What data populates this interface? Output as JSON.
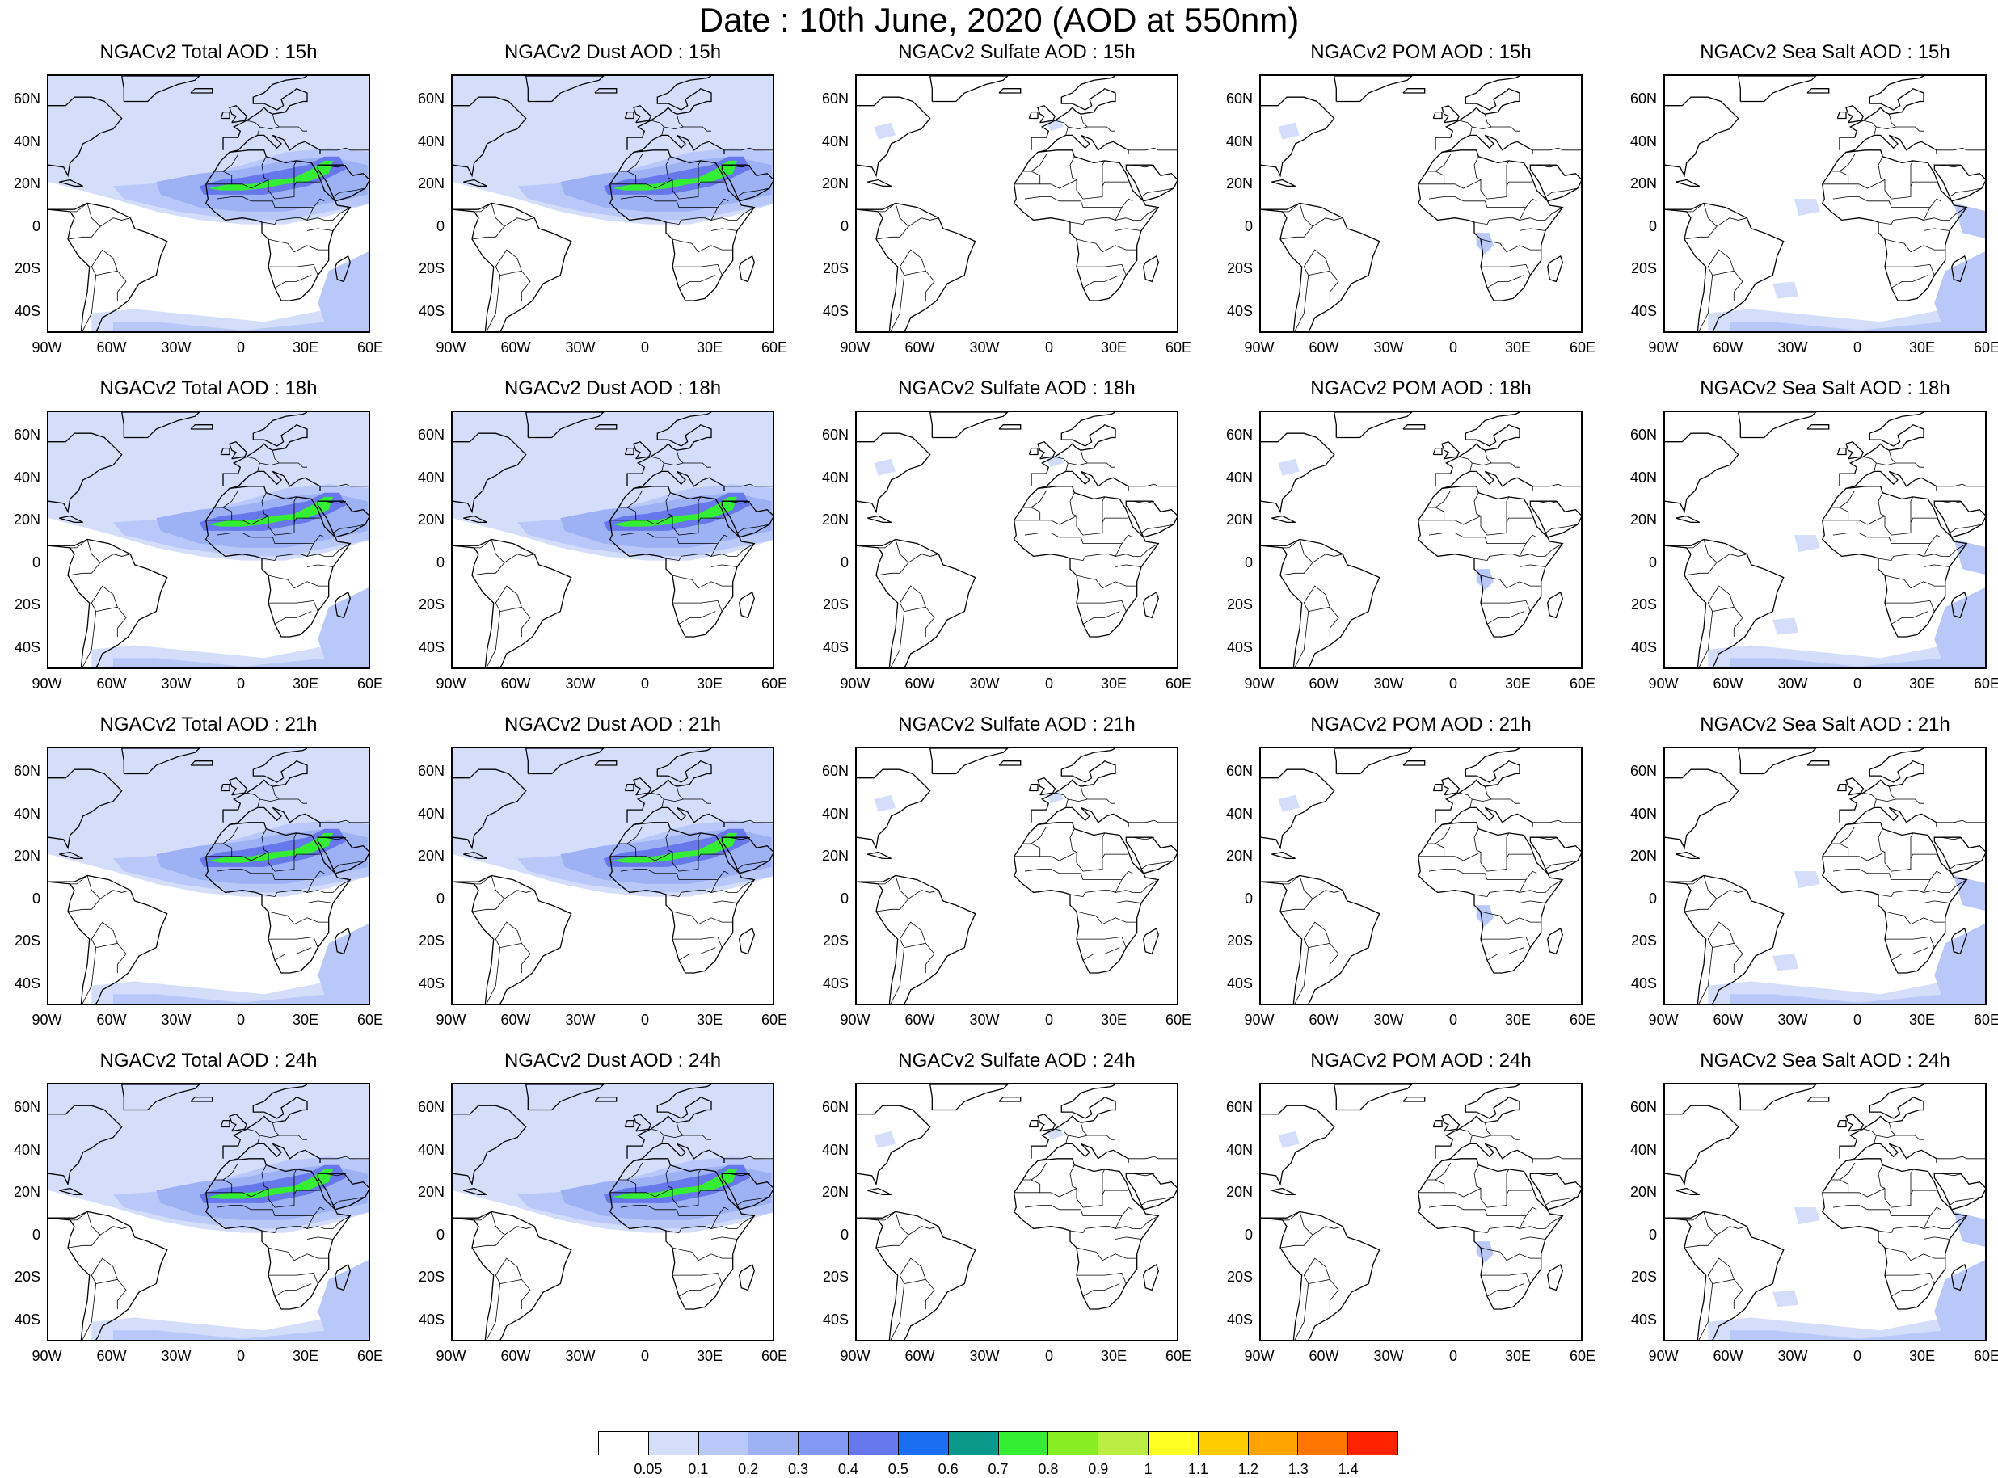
{
  "title": "Date : 10th June, 2020 (AOD at 550nm)",
  "species": [
    {
      "key": "total",
      "name": "Total"
    },
    {
      "key": "dust",
      "name": "Dust"
    },
    {
      "key": "sulfate",
      "name": "Sulfate"
    },
    {
      "key": "pom",
      "name": "POM"
    },
    {
      "key": "seasalt",
      "name": "Sea Salt"
    }
  ],
  "panel_titles": [
    [
      "NGACv2 Total AOD : 15h",
      "NGACv2 Dust AOD : 15h",
      "NGACv2 Sulfate AOD : 15h",
      "NGACv2 POM AOD : 15h",
      "NGACv2 Sea Salt AOD : 15h"
    ],
    [
      "NGACv2 Total AOD : 18h",
      "NGACv2 Dust AOD : 18h",
      "NGACv2 Sulfate AOD : 18h",
      "NGACv2 POM AOD : 18h",
      "NGACv2 Sea Salt AOD : 18h"
    ],
    [
      "NGACv2 Total AOD : 21h",
      "NGACv2 Dust AOD : 21h",
      "NGACv2 Sulfate AOD : 21h",
      "NGACv2 POM AOD : 21h",
      "NGACv2 Sea Salt AOD : 21h"
    ],
    [
      "NGACv2 Total AOD : 24h",
      "NGACv2 Dust AOD : 24h",
      "NGACv2 Sulfate AOD : 24h",
      "NGACv2 POM AOD : 24h",
      "NGACv2 Sea Salt  AOD : 24h"
    ]
  ],
  "lat_labels": [
    "60N",
    "40N",
    "20N",
    "0",
    "20S",
    "40S"
  ],
  "lon_labels": [
    "90W",
    "60W",
    "30W",
    "0",
    "30E",
    "60E"
  ],
  "colorbar": {
    "levels": [
      "0.05",
      "0.1",
      "0.2",
      "0.3",
      "0.4",
      "0.5",
      "0.6",
      "0.7",
      "0.8",
      "0.9",
      "1",
      "1.1",
      "1.2",
      "1.3",
      "1.4"
    ],
    "colors": [
      "#ffffff",
      "#d4defa",
      "#b8c8f8",
      "#9db1f5",
      "#8298f2",
      "#6777ec",
      "#1a6ef0",
      "#0a9a8c",
      "#33ee33",
      "#88ee22",
      "#bbee44",
      "#ffff22",
      "#ffcc00",
      "#ffa400",
      "#ff7700",
      "#ff2200"
    ]
  }
}
